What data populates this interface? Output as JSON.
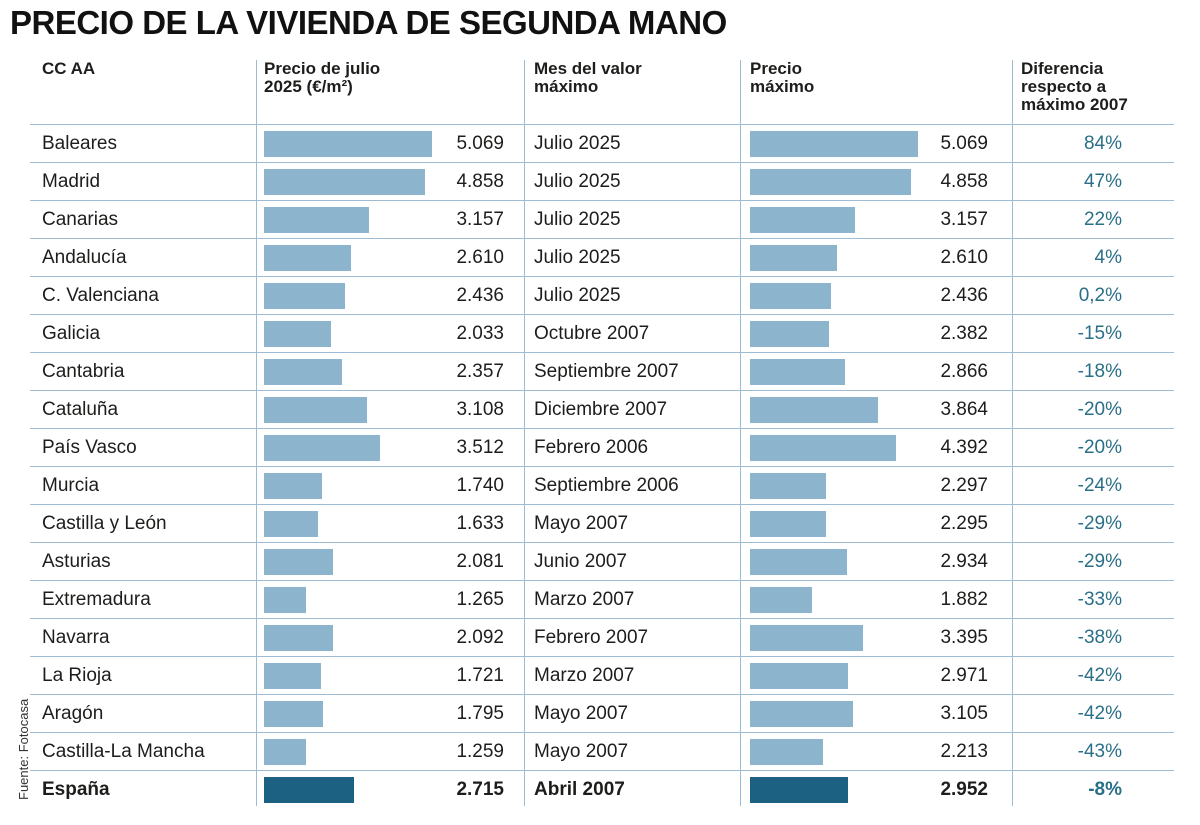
{
  "title": "PRECIO DE LA VIVIENDA DE SEGUNDA MANO",
  "source": "Fuente: Fotocasa",
  "chart_data": {
    "type": "table",
    "columns": [
      "CC AA",
      "Precio de julio 2025 (€/m²)",
      "Mes del valor máximo",
      "Precio máximo",
      "Diferencia respecto a máximo 2007"
    ],
    "column_lines": [
      [
        "CC AA"
      ],
      [
        "Precio de julio",
        "2025 (€/m²)"
      ],
      [
        "Mes del valor",
        "máximo"
      ],
      [
        "Precio",
        "máximo"
      ],
      [
        "Diferencia",
        "respecto a",
        "máximo 2007"
      ]
    ],
    "rows": [
      {
        "region": "Baleares",
        "price": 5069,
        "price_label": "5.069",
        "max_month": "Julio 2025",
        "max_price": 5069,
        "max_price_label": "5.069",
        "diff": "84%"
      },
      {
        "region": "Madrid",
        "price": 4858,
        "price_label": "4.858",
        "max_month": "Julio 2025",
        "max_price": 4858,
        "max_price_label": "4.858",
        "diff": "47%"
      },
      {
        "region": "Canarias",
        "price": 3157,
        "price_label": "3.157",
        "max_month": "Julio 2025",
        "max_price": 3157,
        "max_price_label": "3.157",
        "diff": "22%"
      },
      {
        "region": "Andalucía",
        "price": 2610,
        "price_label": "2.610",
        "max_month": "Julio 2025",
        "max_price": 2610,
        "max_price_label": "2.610",
        "diff": "4%"
      },
      {
        "region": "C. Valenciana",
        "price": 2436,
        "price_label": "2.436",
        "max_month": "Julio 2025",
        "max_price": 2436,
        "max_price_label": "2.436",
        "diff": "0,2%"
      },
      {
        "region": "Galicia",
        "price": 2033,
        "price_label": "2.033",
        "max_month": "Octubre 2007",
        "max_price": 2382,
        "max_price_label": "2.382",
        "diff": "-15%"
      },
      {
        "region": "Cantabria",
        "price": 2357,
        "price_label": "2.357",
        "max_month": "Septiembre 2007",
        "max_price": 2866,
        "max_price_label": "2.866",
        "diff": "-18%"
      },
      {
        "region": "Cataluña",
        "price": 3108,
        "price_label": "3.108",
        "max_month": "Diciembre 2007",
        "max_price": 3864,
        "max_price_label": "3.864",
        "diff": "-20%"
      },
      {
        "region": "País Vasco",
        "price": 3512,
        "price_label": "3.512",
        "max_month": "Febrero 2006",
        "max_price": 4392,
        "max_price_label": "4.392",
        "diff": "-20%"
      },
      {
        "region": "Murcia",
        "price": 1740,
        "price_label": "1.740",
        "max_month": "Septiembre 2006",
        "max_price": 2297,
        "max_price_label": "2.297",
        "diff": "-24%"
      },
      {
        "region": "Castilla y León",
        "price": 1633,
        "price_label": "1.633",
        "max_month": "Mayo 2007",
        "max_price": 2295,
        "max_price_label": "2.295",
        "diff": "-29%"
      },
      {
        "region": "Asturias",
        "price": 2081,
        "price_label": "2.081",
        "max_month": "Junio 2007",
        "max_price": 2934,
        "max_price_label": "2.934",
        "diff": "-29%"
      },
      {
        "region": "Extremadura",
        "price": 1265,
        "price_label": "1.265",
        "max_month": "Marzo 2007",
        "max_price": 1882,
        "max_price_label": "1.882",
        "diff": "-33%"
      },
      {
        "region": "Navarra",
        "price": 2092,
        "price_label": "2.092",
        "max_month": "Febrero 2007",
        "max_price": 3395,
        "max_price_label": "3.395",
        "diff": "-38%"
      },
      {
        "region": "La Rioja",
        "price": 1721,
        "price_label": "1.721",
        "max_month": "Marzo 2007",
        "max_price": 2971,
        "max_price_label": "2.971",
        "diff": "-42%"
      },
      {
        "region": "Aragón",
        "price": 1795,
        "price_label": "1.795",
        "max_month": "Mayo 2007",
        "max_price": 3105,
        "max_price_label": "3.105",
        "diff": "-42%"
      },
      {
        "region": "Castilla-La Mancha",
        "price": 1259,
        "price_label": "1.259",
        "max_month": "Mayo 2007",
        "max_price": 2213,
        "max_price_label": "2.213",
        "diff": "-43%"
      },
      {
        "region": "España",
        "price": 2715,
        "price_label": "2.715",
        "max_month": "Abril 2007",
        "max_price": 2952,
        "max_price_label": "2.952",
        "diff": "-8%",
        "total": true
      }
    ]
  },
  "colors": {
    "bar": "#8cb4cd",
    "bar_total": "#1c6082",
    "percent_text": "#2a6f88",
    "grid": "#9dbcd4"
  }
}
